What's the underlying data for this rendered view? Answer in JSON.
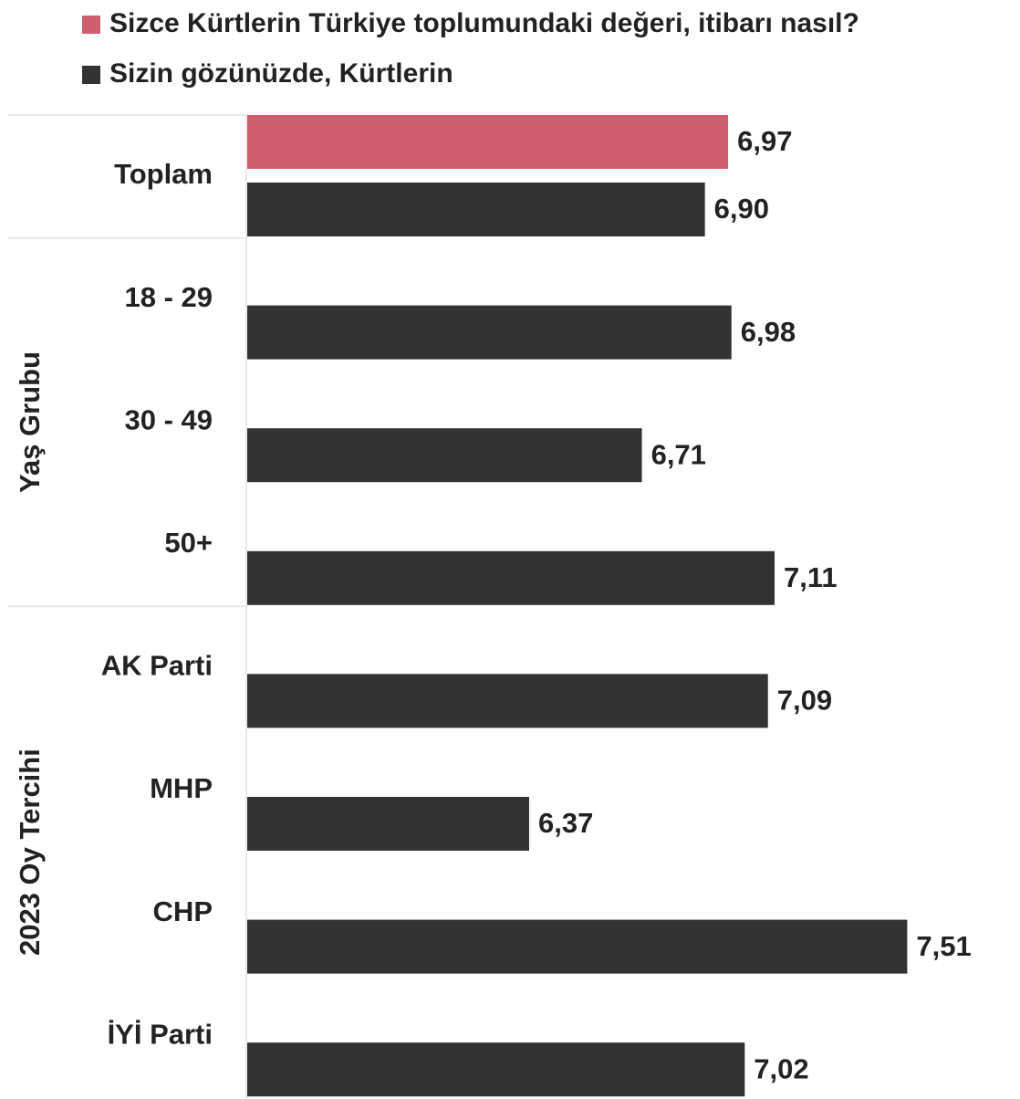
{
  "chart_data": {
    "type": "bar",
    "orientation": "horizontal",
    "categories": [
      "Toplam",
      "18 - 29",
      "30 - 49",
      "50+",
      "AK Parti",
      "MHP",
      "CHP",
      "İYİ Parti"
    ],
    "category_groups": [
      null,
      "Yaş Grubu",
      "Yaş Grubu",
      "Yaş Grubu",
      "2023 Oy Tercihi",
      "2023 Oy Tercihi",
      "2023 Oy Tercihi",
      "2023 Oy Tercihi"
    ],
    "series": [
      {
        "name": "Sizce Kürtlerin Türkiye toplumundaki değeri, itibarı nasıl?",
        "color": "#cf5f70",
        "values": [
          6.97,
          null,
          null,
          null,
          null,
          null,
          null,
          null
        ],
        "value_labels": [
          "6,97",
          null,
          null,
          null,
          null,
          null,
          null,
          null
        ]
      },
      {
        "name": "Sizin gözünüzde, Kürtlerin",
        "color": "#333333",
        "values": [
          6.9,
          6.98,
          6.71,
          7.11,
          7.09,
          6.37,
          7.51,
          7.02
        ],
        "value_labels": [
          "6,90",
          "6,98",
          "6,71",
          "7,11",
          "7,09",
          "6,37",
          "7,51",
          "7,02"
        ]
      }
    ],
    "xlim": [
      5.52,
      7.85
    ]
  }
}
